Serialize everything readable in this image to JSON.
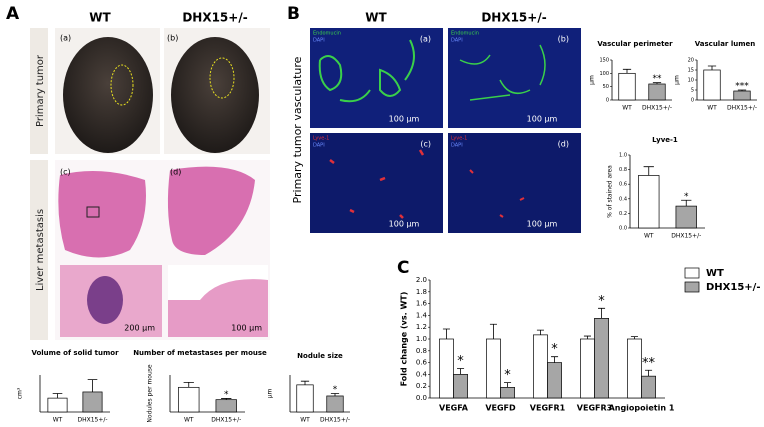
{
  "panel_letters": [
    "A",
    "B",
    "C"
  ],
  "panel_a": {
    "columns": [
      "WT",
      "DHX15+/-"
    ],
    "rows": [
      "Primary tumor",
      "Liver metastasis"
    ],
    "image_labels": [
      "(a)",
      "(b)",
      "(c)",
      "(d)"
    ],
    "scale_bars": [
      "200 µm",
      "100 µm"
    ]
  },
  "panel_b": {
    "columns": [
      "WT",
      "DHX15+/-"
    ],
    "row_label": "Primary tumor vasculature",
    "image_labels": [
      "(a)",
      "(b)",
      "(c)",
      "(d)"
    ],
    "stains": [
      [
        "Endomucin",
        "DAPI"
      ],
      [
        "Endomucin",
        "DAPI"
      ],
      [
        "Lyve-1",
        "DAPI"
      ],
      [
        "Lyve-1",
        "DAPI"
      ]
    ],
    "scale_bars": [
      "100 µm",
      "100 µm",
      "100 µm",
      "100 µm"
    ]
  },
  "chart_data": [
    {
      "type": "bar",
      "title": "Volume of solid tumor",
      "ylabel": "cm³",
      "categories": [
        "WT",
        "DHX15+/-"
      ],
      "values": [
        0.45,
        0.65
      ],
      "errors": [
        0.15,
        0.4
      ],
      "colors": [
        "#ffffff",
        "#a6a6a6"
      ],
      "annotations": [
        null,
        null
      ],
      "ylim": [
        0,
        1.2
      ]
    },
    {
      "type": "bar",
      "title": "Number of metastases per mouse",
      "ylabel": "Nodules per mouse",
      "categories": [
        "WT",
        "DHX15+/-"
      ],
      "values": [
        2.0,
        1.0
      ],
      "errors": [
        0.4,
        0.1
      ],
      "colors": [
        "#ffffff",
        "#a6a6a6"
      ],
      "annotations": [
        null,
        "*"
      ],
      "ylim": [
        0,
        3
      ]
    },
    {
      "type": "bar",
      "title": "Nodule size",
      "ylabel": "µm",
      "categories": [
        "WT",
        "DHX15+/-"
      ],
      "values": [
        110,
        65
      ],
      "errors": [
        15,
        10
      ],
      "colors": [
        "#ffffff",
        "#a6a6a6"
      ],
      "annotations": [
        null,
        "*"
      ],
      "ylim": [
        0,
        150
      ]
    },
    {
      "type": "bar",
      "title": "Vascular perimeter",
      "ylabel": "µm",
      "categories": [
        "WT",
        "DHX15+/-"
      ],
      "values": [
        100,
        60
      ],
      "errors": [
        15,
        5
      ],
      "colors": [
        "#ffffff",
        "#a6a6a6"
      ],
      "annotations": [
        null,
        "**"
      ],
      "ylim": [
        0,
        150
      ],
      "yticks": [
        0,
        50,
        100,
        150
      ]
    },
    {
      "type": "bar",
      "title": "Vascular lumen",
      "ylabel": "µm",
      "categories": [
        "WT",
        "DHX15+/-"
      ],
      "values": [
        15,
        4.5
      ],
      "errors": [
        2,
        0.5
      ],
      "colors": [
        "#ffffff",
        "#a6a6a6"
      ],
      "annotations": [
        null,
        "***"
      ],
      "ylim": [
        0,
        20
      ],
      "yticks": [
        0,
        5,
        10,
        15,
        20
      ]
    },
    {
      "type": "bar",
      "title": "Lyve-1",
      "ylabel": "% of stained area",
      "categories": [
        "WT",
        "DHX15+/-"
      ],
      "values": [
        0.72,
        0.3
      ],
      "errors": [
        0.12,
        0.08
      ],
      "colors": [
        "#ffffff",
        "#a6a6a6"
      ],
      "annotations": [
        null,
        "*"
      ],
      "ylim": [
        0,
        1
      ],
      "yticks": [
        {
          "value": 0,
          "label": "0.0"
        },
        {
          "value": 0.2,
          "label": "0.2"
        },
        {
          "value": 0.4,
          "label": "0.4"
        },
        {
          "value": 0.6,
          "label": "0.6"
        },
        {
          "value": 0.8,
          "label": "0.8"
        },
        {
          "value": 1,
          "label": "1.0"
        }
      ]
    },
    {
      "type": "bar",
      "ylabel": "Fold change (vs. WT)",
      "categories": [
        "VEGFA",
        "VEGFD",
        "VEGFR1",
        "VEGFR3",
        "Angiopoietin 1"
      ],
      "ylim": [
        0,
        2
      ],
      "yticks": [
        {
          "value": 0,
          "label": "0.0"
        },
        {
          "value": 0.2,
          "label": "0.2"
        },
        {
          "value": 0.4,
          "label": "0.4"
        },
        {
          "value": 0.6,
          "label": "0.6"
        },
        {
          "value": 0.8,
          "label": "0.8"
        },
        {
          "value": 1,
          "label": "1.0"
        },
        {
          "value": 1.2,
          "label": "1.2"
        },
        {
          "value": 1.4,
          "label": "1.4"
        },
        {
          "value": 1.6,
          "label": "1.6"
        },
        {
          "value": 1.8,
          "label": "1.8"
        },
        {
          "value": 2,
          "label": "2.0"
        }
      ],
      "series": [
        {
          "name": "WT",
          "color": "#ffffff",
          "values": [
            1,
            1,
            1.07,
            1,
            1
          ],
          "errors": [
            0.17,
            0.25,
            0.08,
            0.05,
            0.04
          ]
        },
        {
          "name": "DHX15+/-",
          "color": "#a6a6a6",
          "values": [
            0.4,
            0.18,
            0.6,
            1.35,
            0.37
          ],
          "errors": [
            0.1,
            0.08,
            0.1,
            0.17,
            0.1
          ],
          "annotations": [
            "*",
            "*",
            "*",
            "*",
            "**"
          ]
        }
      ]
    }
  ]
}
